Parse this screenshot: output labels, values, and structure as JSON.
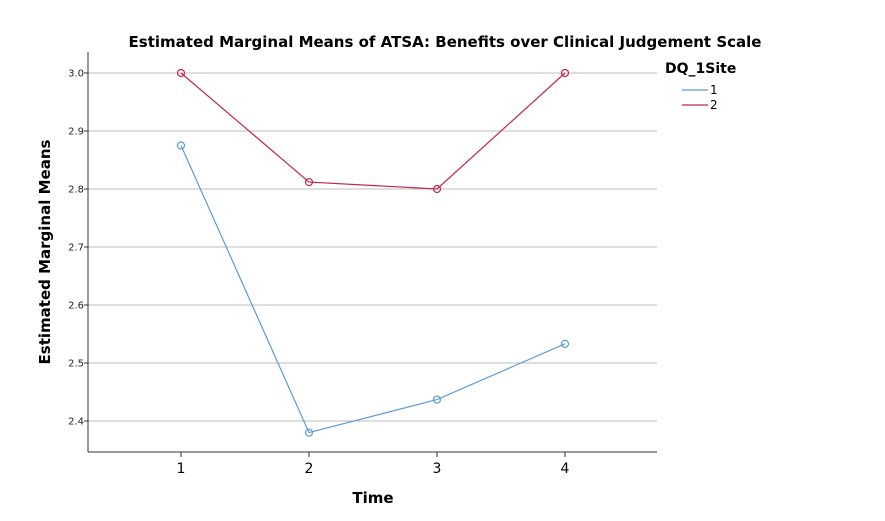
{
  "chart_data": {
    "type": "line",
    "title": "Estimated Marginal Means of ATSA: Benefits over Clinical Judgement Scale",
    "xlabel": "Time",
    "ylabel": "Estimated Marginal Means",
    "categories": [
      "1",
      "2",
      "3",
      "4"
    ],
    "ylim": [
      2.35,
      3.0
    ],
    "yticks": [
      "2.4",
      "2.5",
      "2.6",
      "2.7",
      "2.8",
      "2.9",
      "3.0"
    ],
    "grid": true,
    "legend_title": "DQ_1Site",
    "legend_position": "top-right",
    "series": [
      {
        "name": "1",
        "color": "#5b9bd5",
        "values": [
          2.875,
          2.38,
          2.437,
          2.533
        ]
      },
      {
        "name": "2",
        "color": "#c0284a",
        "values": [
          3.0,
          2.812,
          2.8,
          3.0
        ]
      }
    ]
  }
}
